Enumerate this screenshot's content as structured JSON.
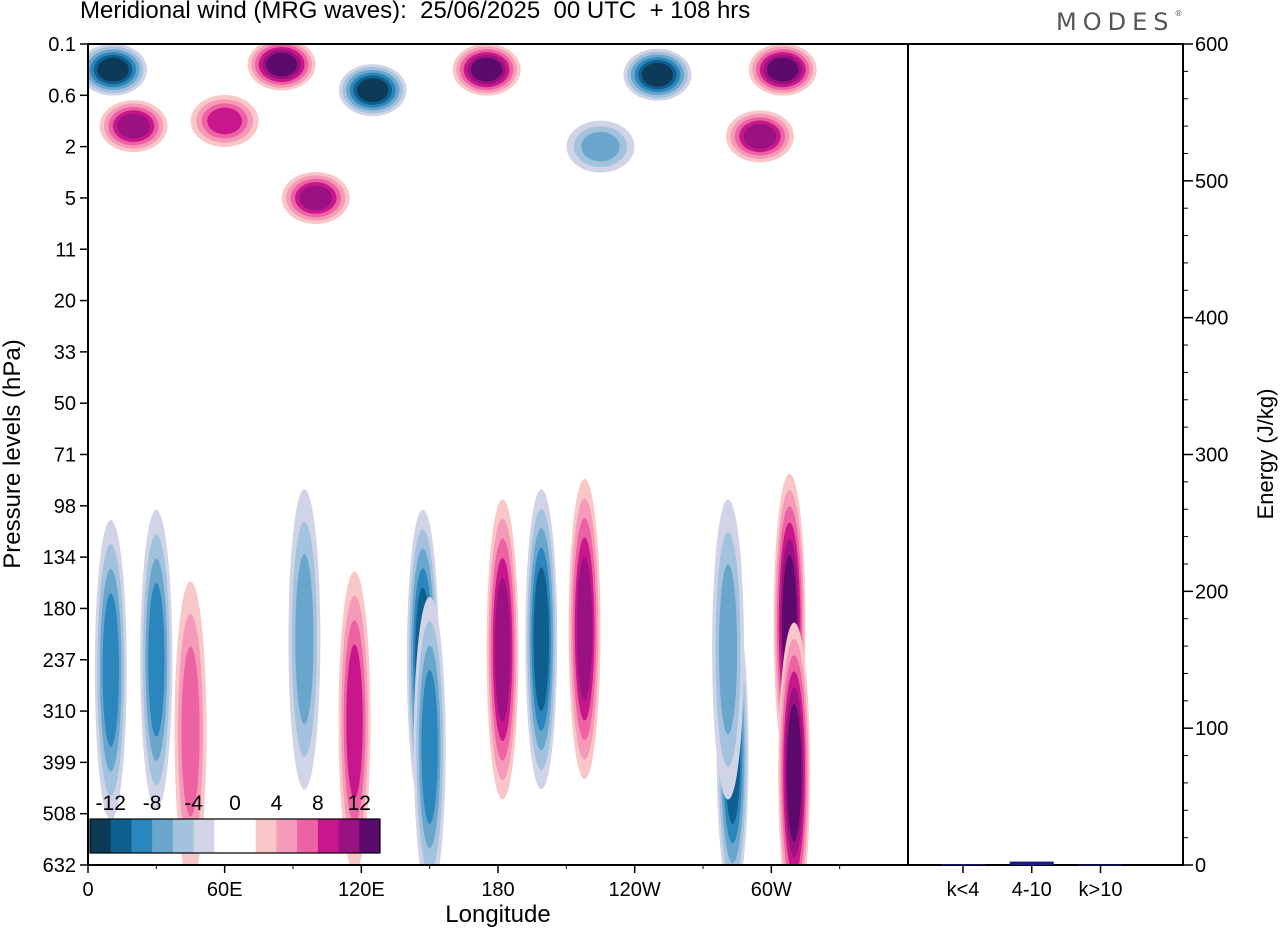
{
  "title": "Meridional wind (MRG waves):  25/06/2025  00 UTC  + 108 hrs",
  "logo": "MODES",
  "logo_mark": "®",
  "chart_data": [
    {
      "type": "heatmap",
      "title": "Meridional wind (MRG waves):  25/06/2025  00 UTC  + 108 hrs",
      "xlabel": "Longitude",
      "ylabel": "Pressure levels (hPa)",
      "x_ticks": [
        "0",
        "60E",
        "120E",
        "180",
        "120W",
        "60W"
      ],
      "y_ticks": [
        "0.1",
        "0.6",
        "2",
        "5",
        "11",
        "20",
        "33",
        "50",
        "71",
        "98",
        "134",
        "180",
        "237",
        "310",
        "399",
        "508",
        "632"
      ],
      "colorbar": {
        "labels": [
          "-12",
          "-8",
          "-4",
          "0",
          "4",
          "8",
          "12"
        ],
        "colors": [
          "#0d3a56",
          "#0f5f8f",
          "#2a86bd",
          "#6aa6cc",
          "#a3c2de",
          "#d1d4e6",
          "#ffffff",
          "#ffffff",
          "#f9c7c7",
          "#f59ab8",
          "#ec62a2",
          "#c8178c",
          "#9a1282",
          "#5c0a6b"
        ]
      },
      "features": [
        {
          "lon": 10,
          "level": 12.2,
          "value": -7
        },
        {
          "lon": 30,
          "level": 12.0,
          "value": -7
        },
        {
          "lon": 45,
          "level": 13.4,
          "value": 6
        },
        {
          "lon": 95,
          "level": 11.6,
          "value": -5
        },
        {
          "lon": 117,
          "level": 13.2,
          "value": 7
        },
        {
          "lon": 147,
          "level": 12.0,
          "value": -10
        },
        {
          "lon": 150,
          "level": 13.7,
          "value": -8
        },
        {
          "lon": 182,
          "level": 11.8,
          "value": 10
        },
        {
          "lon": 199,
          "level": 11.6,
          "value": -10
        },
        {
          "lon": 218,
          "level": 11.4,
          "value": 9
        },
        {
          "lon": 283,
          "level": 13.8,
          "value": -9
        },
        {
          "lon": 281,
          "level": 11.8,
          "value": -5
        },
        {
          "lon": 308,
          "level": 11.3,
          "value": 11
        },
        {
          "lon": 310,
          "level": 14.2,
          "value": 11
        },
        {
          "lon": 20,
          "level": 1.6,
          "value": 10
        },
        {
          "lon": 60,
          "level": 1.5,
          "value": 8
        },
        {
          "lon": 85,
          "level": 0.4,
          "value": 12
        },
        {
          "lon": 125,
          "level": 0.9,
          "value": -14
        },
        {
          "lon": 100,
          "level": 3.0,
          "value": 10
        },
        {
          "lon": 175,
          "level": 0.5,
          "value": 11
        },
        {
          "lon": 250,
          "level": 0.6,
          "value": -14
        },
        {
          "lon": 305,
          "level": 0.5,
          "value": 14
        },
        {
          "lon": 11,
          "level": 0.5,
          "value": -12
        },
        {
          "lon": 295,
          "level": 1.8,
          "value": 9
        },
        {
          "lon": 225,
          "level": 2.0,
          "value": -6
        }
      ]
    },
    {
      "type": "bar",
      "ylabel": "Energy (J/kg)",
      "categories": [
        "k<4",
        "4-10",
        "k>10"
      ],
      "values": [
        0.5,
        2.5,
        0.3
      ],
      "ylim": [
        0,
        600
      ],
      "yticks": [
        "0",
        "100",
        "200",
        "300",
        "400",
        "500",
        "600"
      ],
      "bar_color": "#1a1a8c"
    }
  ]
}
